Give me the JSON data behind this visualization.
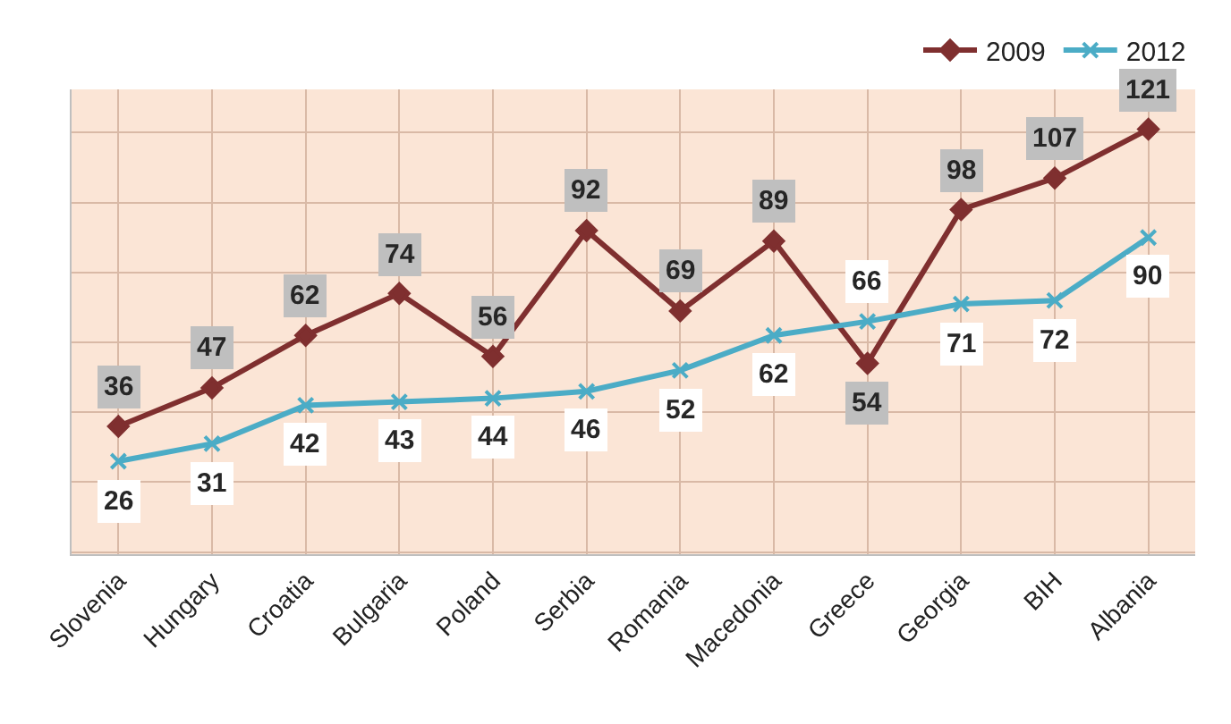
{
  "chart_data": {
    "type": "line",
    "categories": [
      "Slovenia",
      "Hungary",
      "Croatia",
      "Bulgaria",
      "Poland",
      "Serbia",
      "Romania",
      "Macedonia",
      "Greece",
      "Georgia",
      "BIH",
      "Albania"
    ],
    "series": [
      {
        "name": "2009",
        "color": "#7f2f2f",
        "marker": "diamond",
        "values": [
          36,
          47,
          62,
          74,
          56,
          92,
          69,
          89,
          54,
          98,
          107,
          121
        ]
      },
      {
        "name": "2012",
        "color": "#4bacc6",
        "marker": "cross",
        "values": [
          26,
          31,
          42,
          43,
          44,
          46,
          52,
          62,
          66,
          71,
          72,
          90
        ]
      }
    ],
    "data_labels": true,
    "grid": true,
    "legend": "top right",
    "tick_labels": "x",
    "line_style": "solid"
  }
}
